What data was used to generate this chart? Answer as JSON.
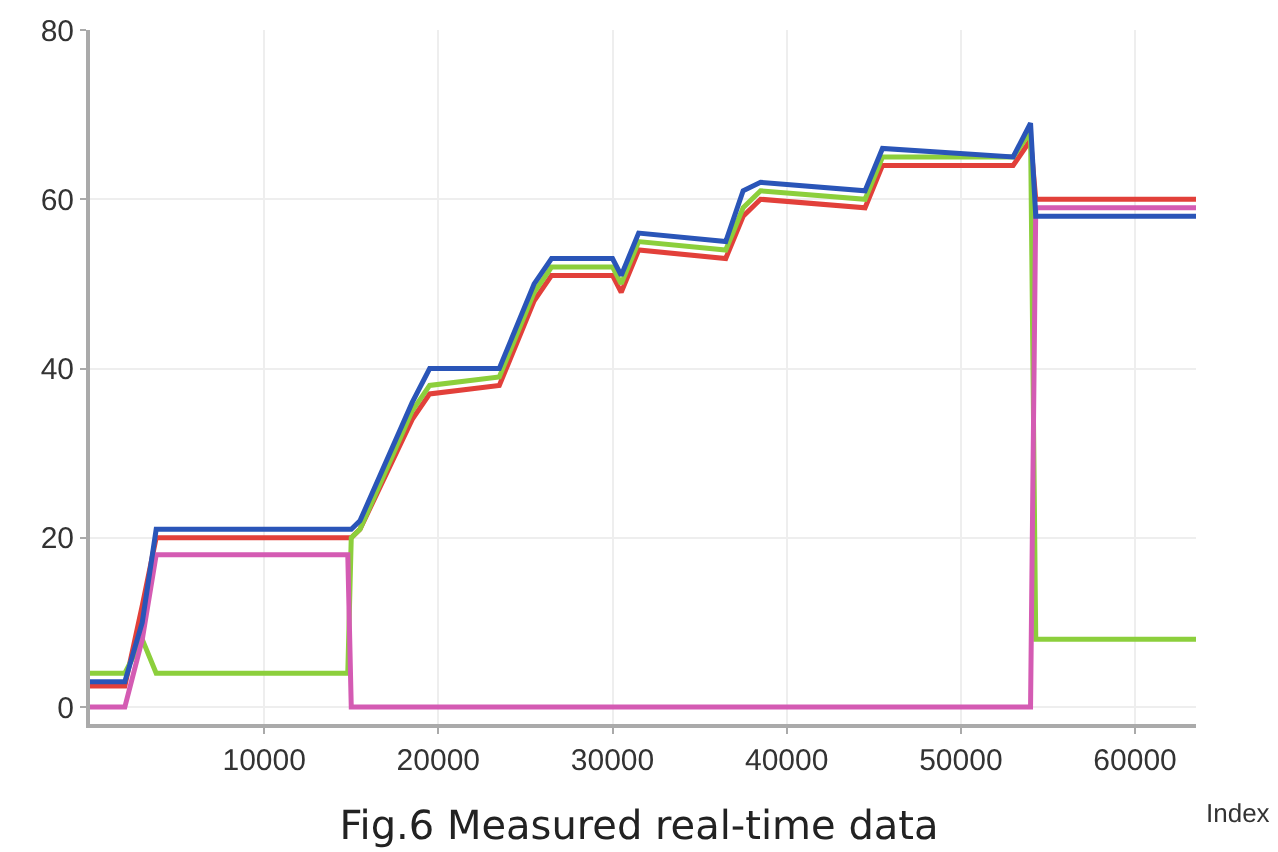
{
  "chart_data": {
    "type": "line",
    "title": "Fig.6 Measured real-time data",
    "xlabel": "Index",
    "x": [
      0,
      2000,
      3000,
      3800,
      13000,
      14800,
      15000,
      15500,
      18500,
      19500,
      23500,
      25500,
      26500,
      30000,
      30500,
      31500,
      36500,
      37500,
      38500,
      44500,
      45500,
      53000,
      54000,
      54300,
      55000,
      63500
    ],
    "series": [
      {
        "color": "#e2403a",
        "values": [
          2.5,
          2.5,
          12,
          20,
          20,
          20,
          20,
          21,
          34,
          37,
          38,
          48,
          51,
          51,
          49,
          54,
          53,
          58,
          60,
          59,
          64,
          64,
          67,
          60,
          60,
          60
        ]
      },
      {
        "color": "#8ccf3c",
        "values": [
          4,
          4,
          8,
          4,
          4,
          4,
          20,
          21,
          35,
          38,
          39,
          49,
          52,
          52,
          50,
          55,
          54,
          59,
          61,
          60,
          65,
          65,
          68,
          8,
          8,
          8
        ]
      },
      {
        "color": "#d45bb3",
        "values": [
          0,
          0,
          8,
          18,
          18,
          18,
          0,
          0,
          0,
          0,
          0,
          0,
          0,
          0,
          0,
          0,
          0,
          0,
          0,
          0,
          0,
          0,
          0,
          59,
          59,
          59
        ]
      },
      {
        "color": "#2a55b8",
        "values": [
          3,
          3,
          10,
          21,
          21,
          21,
          21,
          22,
          36,
          40,
          40,
          50,
          53,
          53,
          51,
          56,
          55,
          61,
          62,
          61,
          66,
          65,
          69,
          58,
          58,
          58
        ]
      }
    ],
    "xlim": [
      0,
      63500
    ],
    "xticks": [
      10000,
      20000,
      30000,
      40000,
      50000,
      60000
    ],
    "ylim": [
      -2,
      80
    ],
    "yticks": [
      0,
      20,
      40,
      60,
      80
    ],
    "grid": true,
    "marker": "none",
    "line_style": "solid"
  }
}
